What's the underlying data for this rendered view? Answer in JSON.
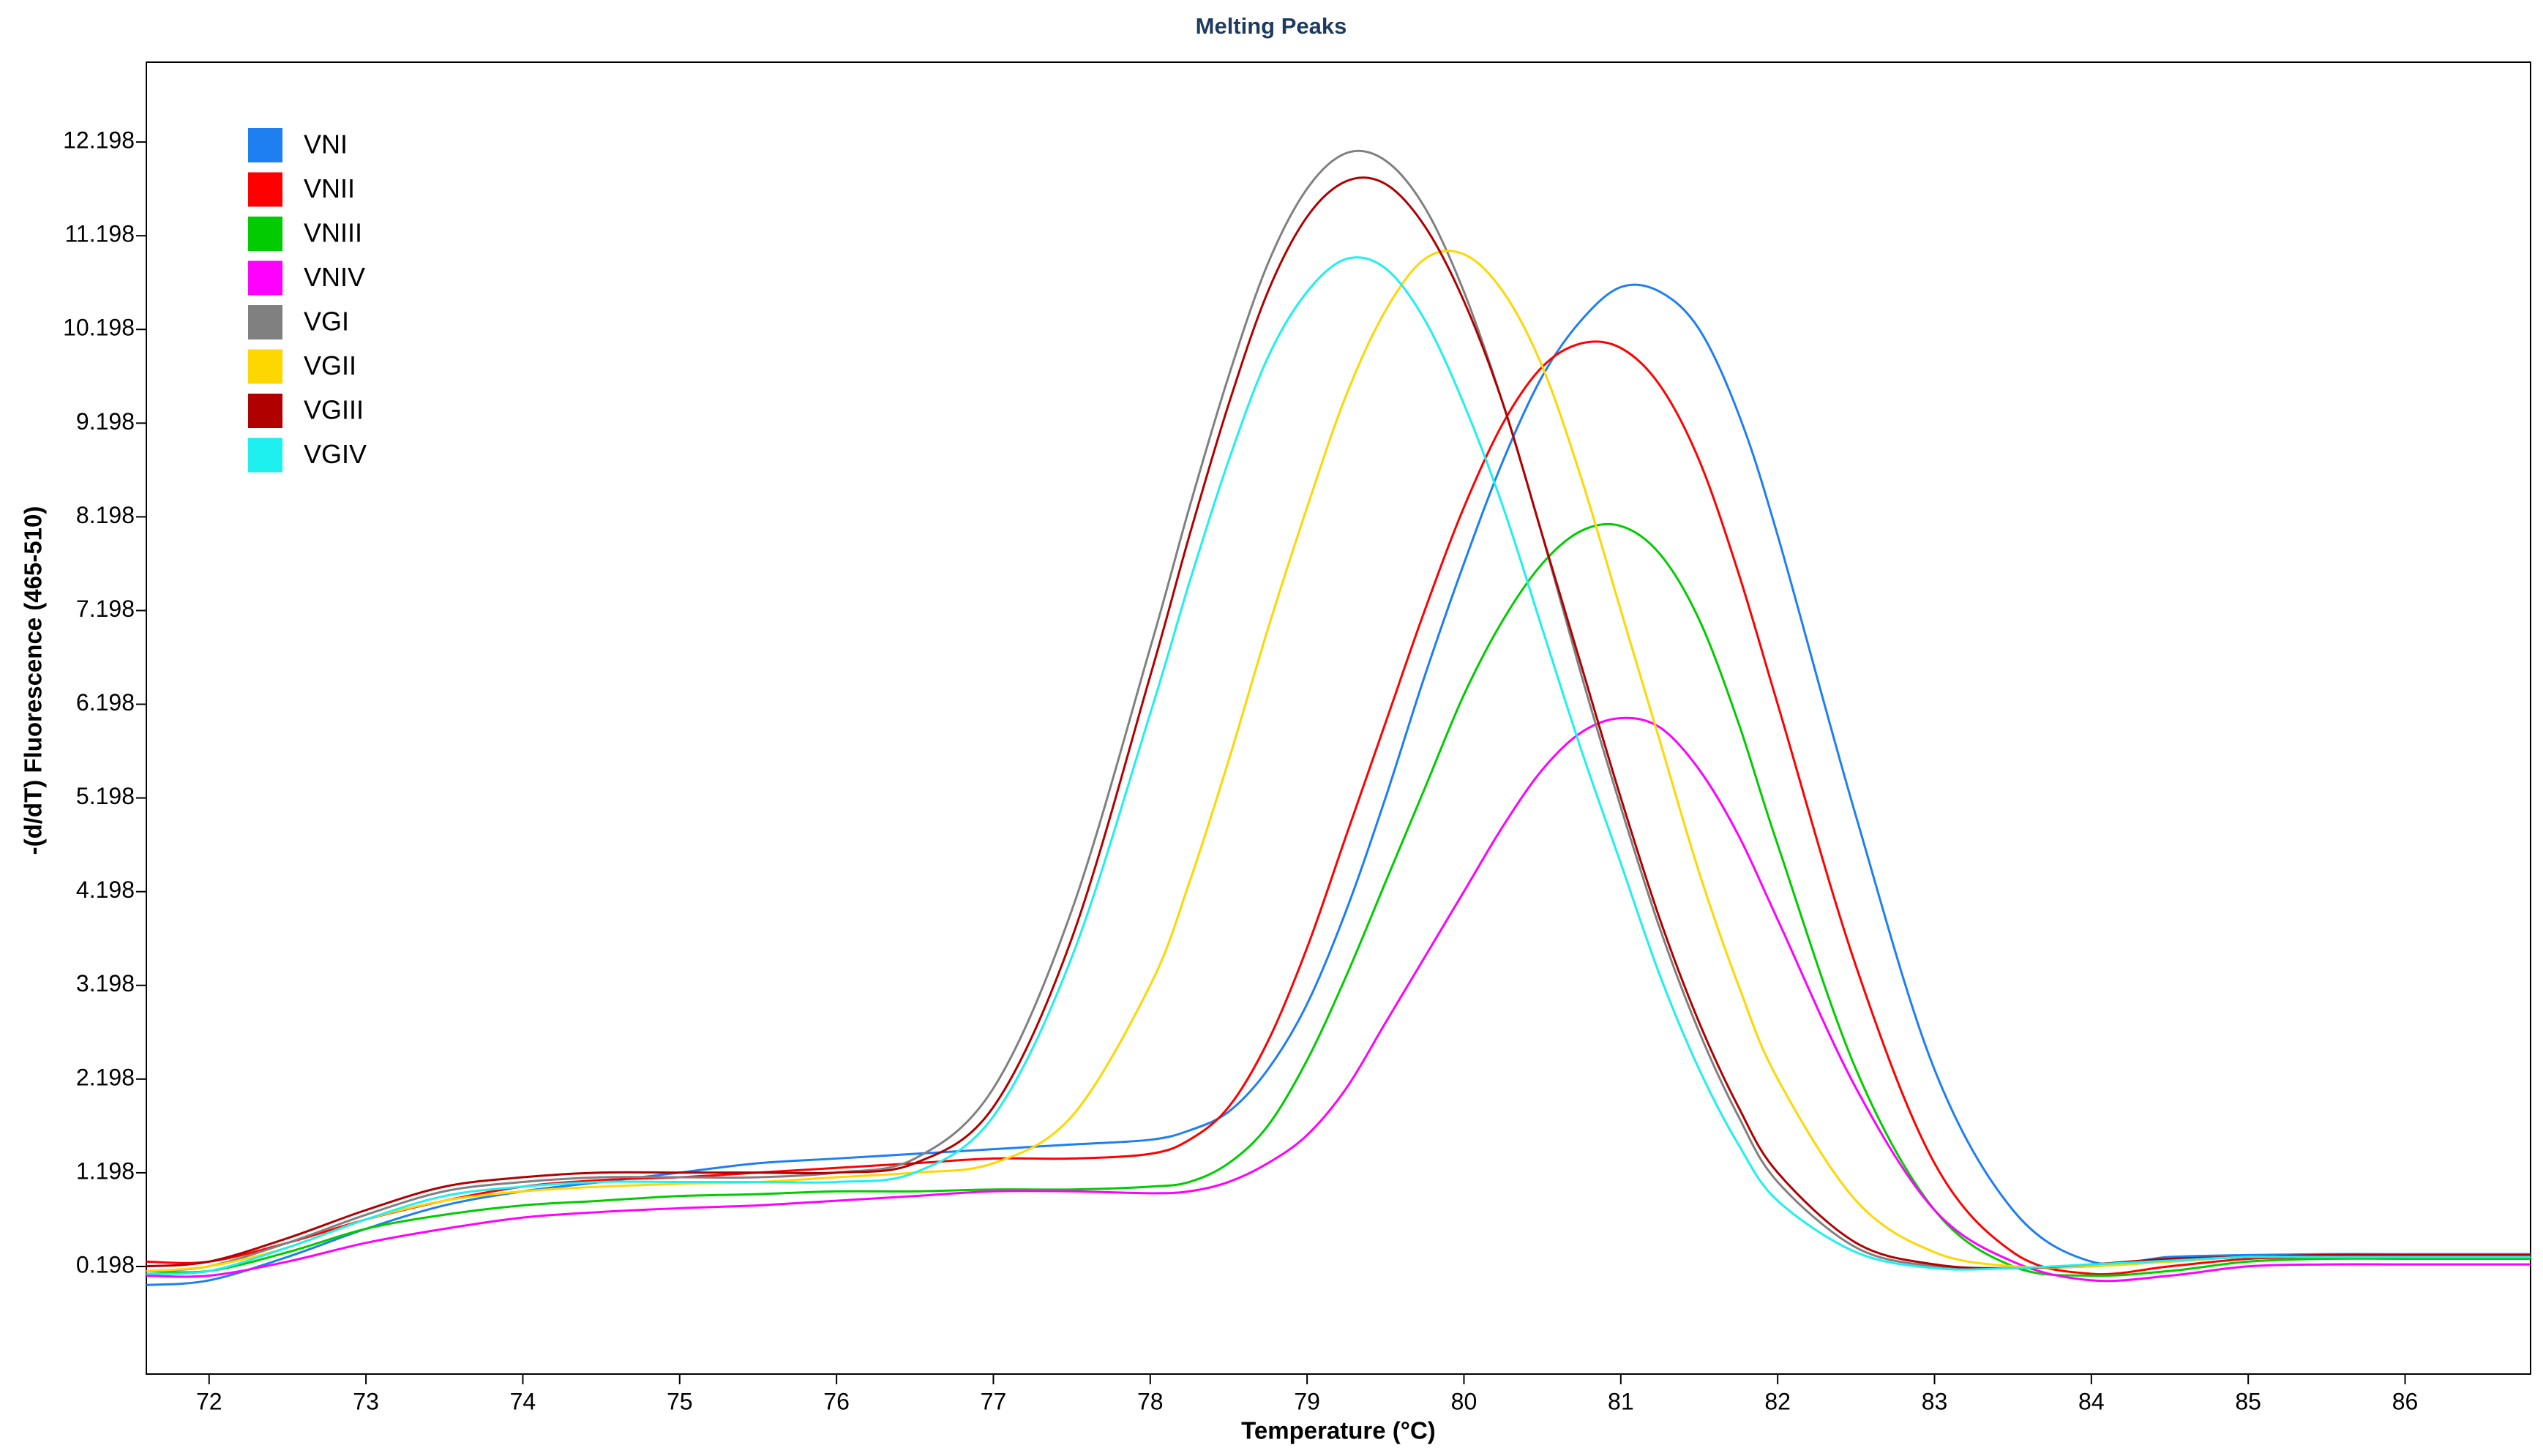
{
  "chart_data": {
    "type": "line",
    "title": "Melting Peaks",
    "x_label": "Temperature (°C)",
    "y_label": "-(d/dT) Fluorescence (465-510)",
    "x": [
      71.6,
      72,
      72.5,
      73,
      73.5,
      74,
      74.5,
      75,
      75.5,
      76,
      76.5,
      77,
      77.5,
      78,
      78.25,
      78.5,
      78.75,
      79,
      79.25,
      79.5,
      79.75,
      80,
      80.25,
      80.5,
      80.75,
      81,
      81.25,
      81.5,
      81.75,
      82,
      82.5,
      83,
      83.5,
      84,
      84.5,
      85,
      85.5,
      86,
      86.8
    ],
    "xlim": [
      71.6,
      86.8
    ],
    "xticks": [
      72,
      73,
      74,
      75,
      76,
      77,
      78,
      79,
      80,
      81,
      82,
      83,
      84,
      85,
      86
    ],
    "ylim": [
      -0.95,
      13.05
    ],
    "yticks": [
      0.198,
      1.198,
      2.198,
      3.198,
      4.198,
      5.198,
      6.198,
      7.198,
      8.198,
      9.198,
      10.198,
      11.198,
      12.198
    ],
    "legend": "upper left",
    "series": [
      {
        "name": "VNI",
        "color": "#1e7ff0",
        "values": [
          0.0,
          0.05,
          0.3,
          0.6,
          0.85,
          1.0,
          1.1,
          1.2,
          1.3,
          1.35,
          1.4,
          1.45,
          1.5,
          1.55,
          1.65,
          1.85,
          2.3,
          3.0,
          4.0,
          5.2,
          6.5,
          7.7,
          8.8,
          9.7,
          10.3,
          10.65,
          10.6,
          10.2,
          9.3,
          8.0,
          5.0,
          2.3,
          0.8,
          0.25,
          0.3,
          0.32,
          0.33,
          0.33,
          0.33
        ]
      },
      {
        "name": "VNII",
        "color": "#ff0000",
        "values": [
          0.25,
          0.25,
          0.45,
          0.7,
          0.9,
          1.05,
          1.12,
          1.15,
          1.2,
          1.25,
          1.3,
          1.35,
          1.35,
          1.4,
          1.55,
          1.9,
          2.6,
          3.6,
          4.8,
          6.0,
          7.2,
          8.3,
          9.2,
          9.8,
          10.05,
          10.0,
          9.6,
          8.8,
          7.6,
          6.2,
          3.4,
          1.3,
          0.35,
          0.12,
          0.2,
          0.28,
          0.3,
          0.3,
          0.3
        ]
      },
      {
        "name": "VNIII",
        "color": "#00cc00",
        "values": [
          0.15,
          0.15,
          0.35,
          0.6,
          0.75,
          0.85,
          0.9,
          0.95,
          0.97,
          1.0,
          1.0,
          1.02,
          1.02,
          1.05,
          1.1,
          1.3,
          1.7,
          2.4,
          3.3,
          4.3,
          5.3,
          6.3,
          7.1,
          7.7,
          8.05,
          8.1,
          7.8,
          7.1,
          6.0,
          4.7,
          2.3,
          0.8,
          0.2,
          0.1,
          0.15,
          0.25,
          0.28,
          0.28,
          0.28
        ]
      },
      {
        "name": "VNIV",
        "color": "#ff00ff",
        "values": [
          0.1,
          0.1,
          0.25,
          0.45,
          0.6,
          0.72,
          0.78,
          0.82,
          0.85,
          0.9,
          0.95,
          1.0,
          1.0,
          0.98,
          1.0,
          1.1,
          1.3,
          1.6,
          2.1,
          2.8,
          3.5,
          4.2,
          4.9,
          5.5,
          5.9,
          6.05,
          5.95,
          5.5,
          4.8,
          3.9,
          2.1,
          0.8,
          0.25,
          0.05,
          0.1,
          0.2,
          0.22,
          0.22,
          0.22
        ]
      },
      {
        "name": "VGI",
        "color": "#808080",
        "values": [
          0.15,
          0.2,
          0.45,
          0.75,
          1.0,
          1.1,
          1.15,
          1.15,
          1.15,
          1.2,
          1.35,
          2.1,
          4.0,
          6.8,
          8.3,
          9.7,
          10.9,
          11.7,
          12.08,
          12.0,
          11.5,
          10.6,
          9.4,
          8.0,
          6.5,
          5.1,
          3.8,
          2.7,
          1.8,
          1.1,
          0.4,
          0.2,
          0.18,
          0.2,
          0.25,
          0.3,
          0.3,
          0.3,
          0.3
        ]
      },
      {
        "name": "VGII",
        "color": "#ffd700",
        "values": [
          0.15,
          0.2,
          0.4,
          0.7,
          0.9,
          1.0,
          1.05,
          1.08,
          1.1,
          1.15,
          1.2,
          1.3,
          1.8,
          3.2,
          4.3,
          5.6,
          7.0,
          8.3,
          9.5,
          10.4,
          10.95,
          11.0,
          10.6,
          9.8,
          8.6,
          7.2,
          5.8,
          4.4,
          3.2,
          2.2,
          0.9,
          0.35,
          0.2,
          0.2,
          0.25,
          0.3,
          0.3,
          0.3,
          0.3
        ]
      },
      {
        "name": "VGIII",
        "color": "#b00000",
        "values": [
          0.2,
          0.25,
          0.5,
          0.8,
          1.05,
          1.15,
          1.2,
          1.2,
          1.2,
          1.2,
          1.3,
          1.9,
          3.7,
          6.5,
          8.0,
          9.4,
          10.6,
          11.4,
          11.78,
          11.75,
          11.3,
          10.5,
          9.4,
          8.0,
          6.6,
          5.2,
          3.9,
          2.8,
          1.9,
          1.2,
          0.45,
          0.22,
          0.18,
          0.22,
          0.28,
          0.3,
          0.32,
          0.32,
          0.32
        ]
      },
      {
        "name": "VGIV",
        "color": "#1ef0f0",
        "values": [
          0.12,
          0.15,
          0.4,
          0.7,
          0.95,
          1.05,
          1.1,
          1.1,
          1.1,
          1.1,
          1.2,
          1.8,
          3.5,
          6.1,
          7.5,
          8.8,
          9.9,
          10.6,
          10.95,
          10.85,
          10.3,
          9.4,
          8.3,
          7.0,
          5.7,
          4.5,
          3.3,
          2.3,
          1.5,
          0.9,
          0.35,
          0.18,
          0.18,
          0.22,
          0.26,
          0.3,
          0.3,
          0.3,
          0.3
        ]
      }
    ]
  }
}
